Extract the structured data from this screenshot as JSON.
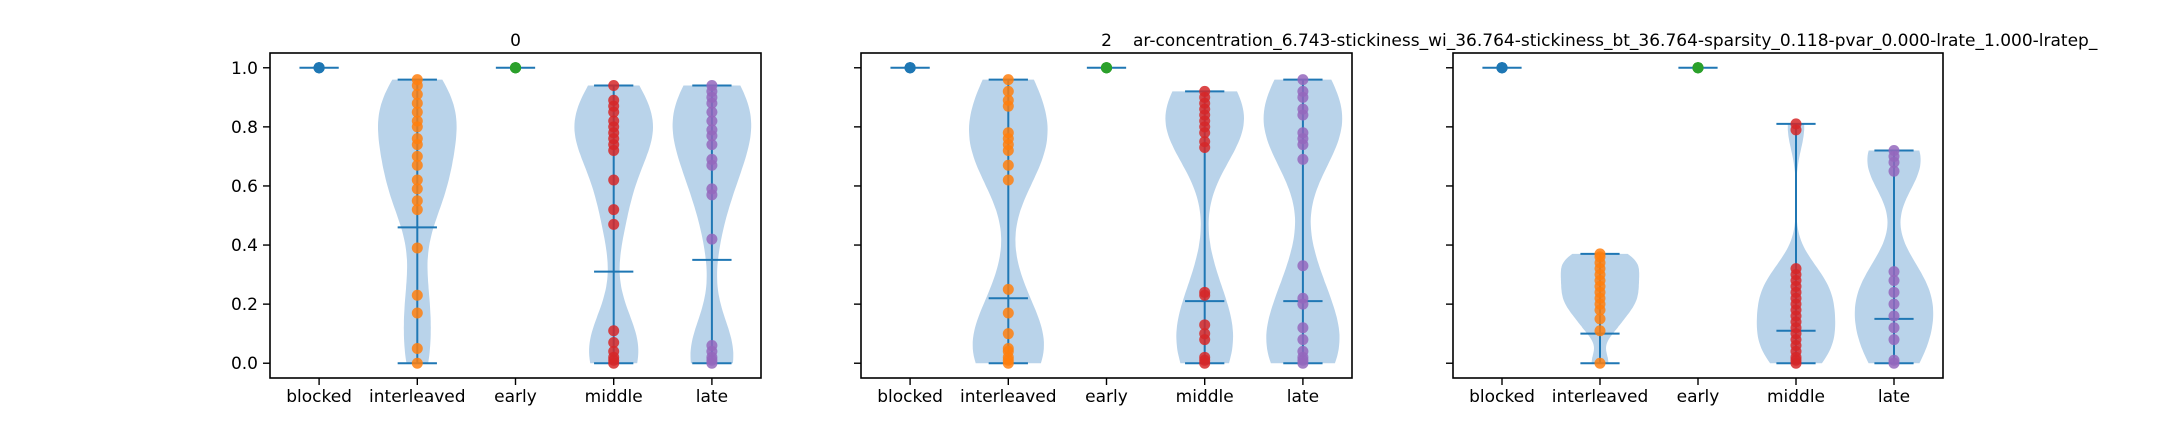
{
  "figure": {
    "suptitle": "ar-concentration_6.743-stickiness_wi_36.764-stickiness_bt_36.764-sparsity_0.118-pvar_0.000-lrate_1.000-lratep_"
  },
  "chart_data": [
    {
      "type": "violin",
      "title": "0",
      "categories": [
        "blocked",
        "interleaved",
        "early",
        "middle",
        "late"
      ],
      "ylim": [
        -0.05,
        1.05
      ],
      "yticks": [
        "0.0",
        "0.2",
        "0.4",
        "0.6",
        "0.8",
        "1.0"
      ],
      "show_yticklabels": true,
      "series": [
        {
          "category": "blocked",
          "color": "#1f77b4",
          "min": 1.0,
          "max": 1.0,
          "mean": 1.0,
          "points": [
            1.0,
            1.0,
            1.0,
            1.0,
            1.0
          ]
        },
        {
          "category": "interleaved",
          "color": "#ff7f0e",
          "min": 0.0,
          "max": 0.96,
          "mean": 0.46,
          "points": [
            0.0,
            0.05,
            0.17,
            0.23,
            0.39,
            0.52,
            0.55,
            0.59,
            0.62,
            0.67,
            0.7,
            0.74,
            0.76,
            0.8,
            0.82,
            0.85,
            0.88,
            0.91,
            0.94,
            0.96
          ]
        },
        {
          "category": "early",
          "color": "#2ca02c",
          "min": 1.0,
          "max": 1.0,
          "mean": 1.0,
          "points": [
            1.0,
            1.0,
            1.0,
            1.0,
            1.0
          ]
        },
        {
          "category": "middle",
          "color": "#d62728",
          "min": 0.0,
          "max": 0.94,
          "mean": 0.31,
          "points": [
            0.0,
            0.01,
            0.02,
            0.04,
            0.07,
            0.11,
            0.47,
            0.52,
            0.62,
            0.72,
            0.74,
            0.76,
            0.78,
            0.8,
            0.82,
            0.85,
            0.87,
            0.89,
            0.94
          ]
        },
        {
          "category": "late",
          "color": "#9467bd",
          "min": 0.0,
          "max": 0.94,
          "mean": 0.35,
          "points": [
            0.0,
            0.01,
            0.02,
            0.04,
            0.06,
            0.42,
            0.57,
            0.59,
            0.67,
            0.69,
            0.74,
            0.77,
            0.79,
            0.82,
            0.85,
            0.88,
            0.9,
            0.92,
            0.94
          ]
        }
      ]
    },
    {
      "type": "violin",
      "title": "2",
      "categories": [
        "blocked",
        "interleaved",
        "early",
        "middle",
        "late"
      ],
      "ylim": [
        -0.05,
        1.05
      ],
      "yticks": [
        "0.0",
        "0.2",
        "0.4",
        "0.6",
        "0.8",
        "1.0"
      ],
      "show_yticklabels": false,
      "series": [
        {
          "category": "blocked",
          "color": "#1f77b4",
          "min": 1.0,
          "max": 1.0,
          "mean": 1.0,
          "points": [
            1.0,
            1.0,
            1.0,
            1.0,
            1.0
          ]
        },
        {
          "category": "interleaved",
          "color": "#ff7f0e",
          "min": 0.0,
          "max": 0.96,
          "mean": 0.22,
          "points": [
            0.0,
            0.01,
            0.02,
            0.04,
            0.05,
            0.1,
            0.17,
            0.25,
            0.62,
            0.67,
            0.72,
            0.74,
            0.76,
            0.78,
            0.87,
            0.89,
            0.92,
            0.96
          ]
        },
        {
          "category": "early",
          "color": "#2ca02c",
          "min": 1.0,
          "max": 1.0,
          "mean": 1.0,
          "points": [
            1.0,
            1.0,
            1.0,
            1.0,
            1.0
          ]
        },
        {
          "category": "middle",
          "color": "#d62728",
          "min": 0.0,
          "max": 0.92,
          "mean": 0.21,
          "points": [
            0.0,
            0.01,
            0.02,
            0.08,
            0.1,
            0.13,
            0.23,
            0.24,
            0.73,
            0.75,
            0.78,
            0.8,
            0.82,
            0.84,
            0.86,
            0.88,
            0.9,
            0.92
          ]
        },
        {
          "category": "late",
          "color": "#9467bd",
          "min": 0.0,
          "max": 0.96,
          "mean": 0.21,
          "points": [
            0.0,
            0.01,
            0.02,
            0.04,
            0.08,
            0.12,
            0.2,
            0.22,
            0.33,
            0.69,
            0.74,
            0.76,
            0.78,
            0.84,
            0.86,
            0.9,
            0.92,
            0.96
          ]
        }
      ]
    },
    {
      "type": "violin",
      "title": "",
      "categories": [
        "blocked",
        "interleaved",
        "early",
        "middle",
        "late"
      ],
      "ylim": [
        -0.05,
        1.05
      ],
      "yticks": [
        "0.0",
        "0.2",
        "0.4",
        "0.6",
        "0.8",
        "1.0"
      ],
      "show_yticklabels": false,
      "series": [
        {
          "category": "blocked",
          "color": "#1f77b4",
          "min": 1.0,
          "max": 1.0,
          "mean": 1.0,
          "points": [
            1.0,
            1.0,
            1.0,
            1.0,
            1.0
          ]
        },
        {
          "category": "interleaved",
          "color": "#ff7f0e",
          "min": 0.0,
          "max": 0.37,
          "mean": 0.1,
          "points": [
            0.0,
            0.11,
            0.15,
            0.18,
            0.2,
            0.22,
            0.24,
            0.26,
            0.28,
            0.3,
            0.32,
            0.34,
            0.36,
            0.37
          ]
        },
        {
          "category": "early",
          "color": "#2ca02c",
          "min": 1.0,
          "max": 1.0,
          "mean": 1.0,
          "points": [
            1.0,
            1.0,
            1.0,
            1.0,
            1.0
          ]
        },
        {
          "category": "middle",
          "color": "#d62728",
          "min": 0.0,
          "max": 0.81,
          "mean": 0.11,
          "points": [
            0.0,
            0.01,
            0.02,
            0.04,
            0.06,
            0.08,
            0.1,
            0.12,
            0.14,
            0.16,
            0.18,
            0.2,
            0.22,
            0.24,
            0.26,
            0.28,
            0.3,
            0.32,
            0.79,
            0.81
          ]
        },
        {
          "category": "late",
          "color": "#9467bd",
          "min": 0.0,
          "max": 0.72,
          "mean": 0.15,
          "points": [
            0.0,
            0.01,
            0.08,
            0.12,
            0.16,
            0.2,
            0.24,
            0.28,
            0.31,
            0.65,
            0.68,
            0.7,
            0.72
          ]
        }
      ]
    }
  ]
}
